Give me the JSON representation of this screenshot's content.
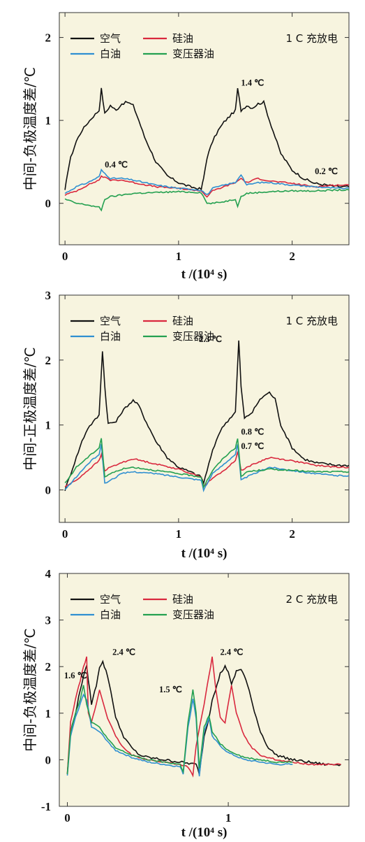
{
  "colors": {
    "background": "#f7f4df",
    "air": "#111111",
    "silicone": "#d9283e",
    "white": "#2f8fd1",
    "transformer": "#24a050"
  },
  "chart_data": [
    {
      "type": "line",
      "ylabel": "中间-负极温度差/℃",
      "xlabel": "t /(10⁴ s)",
      "condition": "1 C 充放电",
      "xlim": [
        -0.05,
        2.5
      ],
      "ylim": [
        -0.5,
        2.3
      ],
      "xticks": [
        0,
        1,
        2
      ],
      "yticks": [
        0,
        1,
        2
      ],
      "series": [
        {
          "name": "空气",
          "color_key": "air",
          "x": [
            0,
            0.02,
            0.05,
            0.1,
            0.15,
            0.2,
            0.25,
            0.3,
            0.32,
            0.35,
            0.4,
            0.45,
            0.5,
            0.55,
            0.6,
            0.65,
            0.7,
            0.8,
            0.9,
            1.0,
            1.1,
            1.2,
            1.22,
            1.25,
            1.3,
            1.35,
            1.4,
            1.45,
            1.5,
            1.52,
            1.55,
            1.6,
            1.65,
            1.7,
            1.75,
            1.8,
            1.9,
            2.0,
            2.1,
            2.2,
            2.3,
            2.4,
            2.5
          ],
          "y": [
            0.15,
            0.35,
            0.55,
            0.75,
            0.88,
            0.97,
            1.05,
            1.12,
            1.38,
            1.08,
            1.18,
            1.12,
            1.2,
            1.22,
            1.18,
            1.0,
            0.8,
            0.5,
            0.33,
            0.25,
            0.2,
            0.17,
            0.3,
            0.55,
            0.75,
            0.88,
            0.98,
            1.05,
            1.12,
            1.38,
            1.12,
            1.18,
            1.15,
            1.2,
            1.22,
            1.0,
            0.6,
            0.4,
            0.3,
            0.24,
            0.22,
            0.2,
            0.2
          ]
        },
        {
          "name": "硅油",
          "color_key": "silicone",
          "x": [
            0,
            0.1,
            0.2,
            0.3,
            0.32,
            0.4,
            0.5,
            0.6,
            0.8,
            1.0,
            1.2,
            1.25,
            1.3,
            1.4,
            1.5,
            1.55,
            1.6,
            1.7,
            1.8,
            2.0,
            2.2,
            2.4,
            2.5
          ],
          "y": [
            0.1,
            0.15,
            0.22,
            0.28,
            0.33,
            0.28,
            0.28,
            0.25,
            0.2,
            0.18,
            0.15,
            0.08,
            0.15,
            0.2,
            0.25,
            0.3,
            0.25,
            0.3,
            0.27,
            0.24,
            0.2,
            0.22,
            0.22
          ]
        },
        {
          "name": "白油",
          "color_key": "white",
          "x": [
            0,
            0.1,
            0.2,
            0.3,
            0.32,
            0.4,
            0.5,
            0.6,
            0.8,
            1.0,
            1.2,
            1.25,
            1.3,
            1.4,
            1.5,
            1.55,
            1.6,
            1.7,
            1.8,
            2.0,
            2.2,
            2.4,
            2.5
          ],
          "y": [
            0.12,
            0.2,
            0.25,
            0.32,
            0.4,
            0.3,
            0.3,
            0.28,
            0.22,
            0.18,
            0.16,
            0.1,
            0.18,
            0.22,
            0.25,
            0.35,
            0.22,
            0.25,
            0.25,
            0.22,
            0.2,
            0.18,
            0.18
          ]
        },
        {
          "name": "变压器油",
          "color_key": "transformer",
          "x": [
            0,
            0.1,
            0.2,
            0.3,
            0.32,
            0.35,
            0.4,
            0.5,
            0.6,
            0.8,
            1.0,
            1.2,
            1.25,
            1.3,
            1.4,
            1.5,
            1.52,
            1.55,
            1.6,
            1.8,
            2.0,
            2.2,
            2.4,
            2.5
          ],
          "y": [
            0.05,
            0.0,
            -0.02,
            -0.05,
            -0.08,
            0.05,
            0.08,
            0.1,
            0.12,
            0.13,
            0.14,
            0.13,
            0.0,
            0.0,
            0.02,
            0.05,
            -0.03,
            0.08,
            0.12,
            0.14,
            0.15,
            0.15,
            0.16,
            0.16
          ]
        }
      ],
      "annotations": [
        {
          "text": "1.4 ℃",
          "x": 1.55,
          "y": 1.42
        },
        {
          "text": "0.4 ℃",
          "x": 0.35,
          "y": 0.43
        },
        {
          "text": "0.2 ℃",
          "x": 2.2,
          "y": 0.35
        }
      ]
    },
    {
      "type": "line",
      "ylabel": "中间-正极温度差/℃",
      "xlabel": "t /(10⁴ s)",
      "condition": "1 C 充放电",
      "xlim": [
        -0.05,
        2.5
      ],
      "ylim": [
        -0.5,
        3.0
      ],
      "xticks": [
        0,
        1,
        2
      ],
      "yticks": [
        0,
        1,
        2,
        3
      ],
      "series": [
        {
          "name": "空气",
          "color_key": "air",
          "x": [
            0,
            0.05,
            0.1,
            0.15,
            0.2,
            0.25,
            0.3,
            0.33,
            0.35,
            0.38,
            0.45,
            0.5,
            0.55,
            0.6,
            0.65,
            0.7,
            0.8,
            0.9,
            1.0,
            1.1,
            1.2,
            1.22,
            1.25,
            1.3,
            1.35,
            1.4,
            1.45,
            1.5,
            1.53,
            1.55,
            1.58,
            1.65,
            1.7,
            1.75,
            1.8,
            1.85,
            1.9,
            2.0,
            2.1,
            2.2,
            2.3,
            2.4,
            2.5
          ],
          "y": [
            0.0,
            0.25,
            0.5,
            0.75,
            0.95,
            1.05,
            1.15,
            2.15,
            1.6,
            1.02,
            1.05,
            1.2,
            1.3,
            1.38,
            1.3,
            1.1,
            0.75,
            0.5,
            0.35,
            0.28,
            0.2,
            0.1,
            0.3,
            0.6,
            0.85,
            1.0,
            1.1,
            1.2,
            2.3,
            1.6,
            1.1,
            1.2,
            1.35,
            1.45,
            1.5,
            1.4,
            1.0,
            0.65,
            0.48,
            0.42,
            0.4,
            0.38,
            0.38
          ]
        },
        {
          "name": "硅油",
          "color_key": "silicone",
          "x": [
            0,
            0.1,
            0.2,
            0.3,
            0.32,
            0.35,
            0.4,
            0.5,
            0.6,
            0.8,
            1.0,
            1.2,
            1.22,
            1.3,
            1.4,
            1.5,
            1.52,
            1.55,
            1.6,
            1.8,
            2.0,
            2.2,
            2.4,
            2.5
          ],
          "y": [
            0.05,
            0.15,
            0.3,
            0.45,
            0.55,
            0.3,
            0.35,
            0.42,
            0.48,
            0.4,
            0.32,
            0.2,
            0.05,
            0.18,
            0.3,
            0.45,
            0.6,
            0.3,
            0.35,
            0.5,
            0.45,
            0.38,
            0.35,
            0.35
          ]
        },
        {
          "name": "白油",
          "color_key": "white",
          "x": [
            0,
            0.1,
            0.2,
            0.3,
            0.32,
            0.35,
            0.4,
            0.5,
            0.6,
            0.8,
            1.0,
            1.2,
            1.22,
            1.3,
            1.4,
            1.5,
            1.52,
            1.55,
            1.6,
            1.8,
            2.0,
            2.2,
            2.4,
            2.5
          ],
          "y": [
            0.0,
            0.2,
            0.4,
            0.55,
            0.7,
            0.1,
            0.15,
            0.25,
            0.28,
            0.25,
            0.2,
            0.15,
            0.0,
            0.25,
            0.4,
            0.55,
            0.7,
            0.15,
            0.2,
            0.35,
            0.3,
            0.25,
            0.22,
            0.22
          ]
        },
        {
          "name": "变压器油",
          "color_key": "transformer",
          "x": [
            0,
            0.1,
            0.2,
            0.3,
            0.32,
            0.35,
            0.4,
            0.5,
            0.6,
            0.8,
            1.0,
            1.2,
            1.22,
            1.3,
            1.4,
            1.5,
            1.52,
            1.55,
            1.6,
            1.8,
            2.0,
            2.2,
            2.4,
            2.5
          ],
          "y": [
            0.1,
            0.35,
            0.5,
            0.65,
            0.8,
            0.2,
            0.25,
            0.32,
            0.35,
            0.3,
            0.25,
            0.2,
            0.05,
            0.3,
            0.5,
            0.65,
            0.8,
            0.2,
            0.28,
            0.32,
            0.3,
            0.28,
            0.28,
            0.28
          ]
        }
      ],
      "annotations": [
        {
          "text": "2.3 ℃",
          "x": 1.18,
          "y": 2.28
        },
        {
          "text": "0.8 ℃",
          "x": 1.55,
          "y": 0.85
        },
        {
          "text": "0.7 ℃",
          "x": 1.55,
          "y": 0.63
        }
      ]
    },
    {
      "type": "line",
      "ylabel": "中间-负极温度差/℃",
      "xlabel": "t /(10⁴ s)",
      "condition": "2 C 充放电",
      "xlim": [
        -0.05,
        1.75
      ],
      "ylim": [
        -1,
        4
      ],
      "xticks": [
        0,
        1
      ],
      "yticks": [
        -1,
        0,
        1,
        2,
        3,
        4
      ],
      "series": [
        {
          "name": "空气",
          "color_key": "air",
          "x": [
            0,
            0.02,
            0.05,
            0.08,
            0.1,
            0.12,
            0.15,
            0.18,
            0.2,
            0.22,
            0.25,
            0.28,
            0.3,
            0.35,
            0.4,
            0.45,
            0.5,
            0.6,
            0.7,
            0.8,
            0.82,
            0.85,
            0.88,
            0.9,
            0.93,
            0.95,
            0.98,
            1.0,
            1.02,
            1.05,
            1.08,
            1.1,
            1.12,
            1.15,
            1.2,
            1.25,
            1.3,
            1.4,
            1.5,
            1.6,
            1.7
          ],
          "y": [
            -0.3,
            0.6,
            1.0,
            1.5,
            1.8,
            2.0,
            1.2,
            1.6,
            2.0,
            2.1,
            1.8,
            1.3,
            0.9,
            0.5,
            0.25,
            0.1,
            0.05,
            0.0,
            -0.05,
            -0.1,
            -0.3,
            0.5,
            0.9,
            1.3,
            1.6,
            1.85,
            2.0,
            1.9,
            1.6,
            1.9,
            1.95,
            1.8,
            1.6,
            1.2,
            0.6,
            0.25,
            0.1,
            0.0,
            -0.05,
            -0.1,
            -0.1
          ]
        },
        {
          "name": "硅油",
          "color_key": "silicone",
          "x": [
            0,
            0.02,
            0.05,
            0.08,
            0.1,
            0.12,
            0.13,
            0.15,
            0.18,
            0.2,
            0.25,
            0.3,
            0.35,
            0.4,
            0.5,
            0.6,
            0.7,
            0.75,
            0.78,
            0.8,
            0.85,
            0.88,
            0.9,
            0.92,
            0.95,
            0.98,
            1.0,
            1.02,
            1.05,
            1.1,
            1.15,
            1.2,
            1.3,
            1.4,
            1.5,
            1.6,
            1.7
          ],
          "y": [
            -0.3,
            0.8,
            1.3,
            1.7,
            2.0,
            2.2,
            1.0,
            0.8,
            1.2,
            1.5,
            0.9,
            0.5,
            0.25,
            0.1,
            0.0,
            -0.05,
            -0.1,
            -0.15,
            -0.35,
            0.3,
            1.2,
            1.8,
            2.2,
            1.6,
            0.9,
            0.8,
            1.2,
            1.6,
            1.0,
            0.5,
            0.25,
            0.1,
            0.0,
            -0.05,
            -0.1,
            -0.1,
            -0.1
          ]
        },
        {
          "name": "白油",
          "color_key": "white",
          "x": [
            0,
            0.02,
            0.05,
            0.08,
            0.1,
            0.12,
            0.15,
            0.2,
            0.25,
            0.3,
            0.4,
            0.5,
            0.6,
            0.7,
            0.72,
            0.75,
            0.78,
            0.8,
            0.82,
            0.85,
            0.88,
            0.9,
            0.95,
            1.0,
            1.1,
            1.2,
            1.3,
            1.4
          ],
          "y": [
            -0.35,
            0.5,
            0.9,
            1.2,
            1.4,
            1.3,
            0.7,
            0.6,
            0.4,
            0.2,
            0.05,
            -0.05,
            -0.1,
            -0.15,
            -0.3,
            0.7,
            1.3,
            0.9,
            -0.35,
            0.6,
            0.9,
            0.5,
            0.3,
            0.15,
            0.0,
            -0.05,
            -0.1,
            -0.1
          ]
        },
        {
          "name": "变压器油",
          "color_key": "transformer",
          "x": [
            0,
            0.02,
            0.05,
            0.08,
            0.1,
            0.12,
            0.15,
            0.2,
            0.25,
            0.3,
            0.4,
            0.5,
            0.6,
            0.7,
            0.72,
            0.75,
            0.78,
            0.8,
            0.82,
            0.85,
            0.88,
            0.9,
            0.95,
            1.0,
            1.1,
            1.2,
            1.3,
            1.4
          ],
          "y": [
            -0.3,
            0.6,
            1.0,
            1.3,
            1.6,
            1.2,
            0.8,
            0.7,
            0.45,
            0.25,
            0.1,
            0.0,
            -0.05,
            -0.1,
            -0.25,
            0.8,
            1.5,
            1.0,
            -0.2,
            0.7,
            0.95,
            0.6,
            0.35,
            0.2,
            0.05,
            0.0,
            -0.05,
            -0.05
          ]
        }
      ],
      "annotations": [
        {
          "text": "2.4 ℃",
          "x": 0.28,
          "y": 2.25
        },
        {
          "text": "1.6 ℃",
          "x": -0.02,
          "y": 1.75
        },
        {
          "text": "1.5 ℃",
          "x": 0.57,
          "y": 1.45
        },
        {
          "text": "2.4 ℃",
          "x": 0.95,
          "y": 2.25
        }
      ]
    }
  ]
}
